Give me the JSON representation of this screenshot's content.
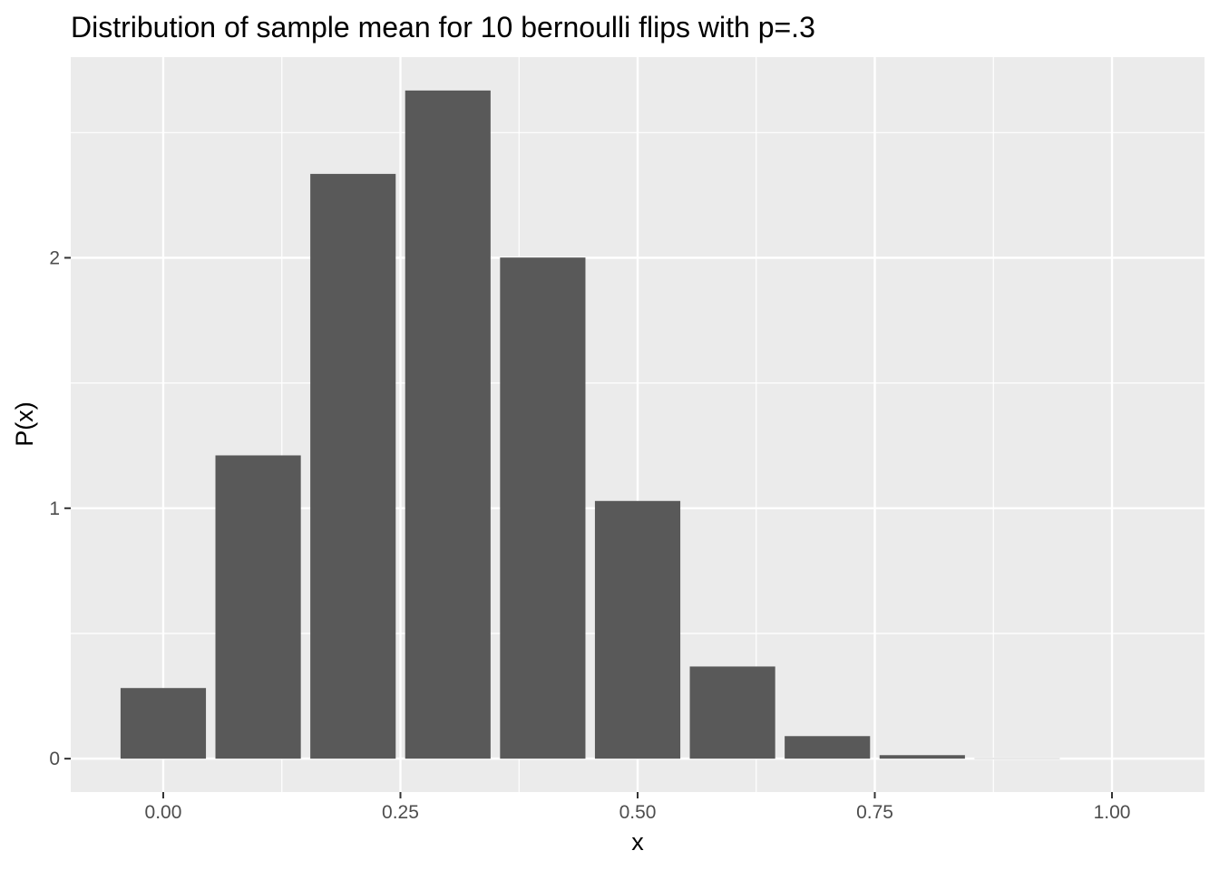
{
  "chart_data": {
    "type": "bar",
    "title": "Distribution of sample mean for 10 bernoulli flips with p=.3",
    "xlabel": "x",
    "ylabel": "P(x)",
    "x": [
      0.0,
      0.1,
      0.2,
      0.3,
      0.4,
      0.5,
      0.6,
      0.7,
      0.8,
      0.9,
      1.0
    ],
    "values": [
      0.282,
      1.211,
      2.335,
      2.668,
      2.001,
      1.029,
      0.368,
      0.09,
      0.014,
      0.001,
      0.0
    ],
    "bar_width": 0.09,
    "xlim": [
      -0.0975,
      1.0975
    ],
    "ylim": [
      -0.1334,
      2.8014
    ],
    "x_ticks": [
      0.0,
      0.25,
      0.5,
      0.75,
      1.0
    ],
    "x_tick_labels": [
      "0.00",
      "0.25",
      "0.50",
      "0.75",
      "1.00"
    ],
    "y_ticks": [
      0,
      1,
      2
    ],
    "y_tick_labels": [
      "0",
      "1",
      "2"
    ],
    "x_minor_ticks": [
      0.125,
      0.375,
      0.625,
      0.875
    ],
    "y_minor_ticks": [
      0.5,
      1.5,
      2.5
    ],
    "grid": true,
    "colors": {
      "panel": "#ebebeb",
      "grid": "#ffffff",
      "bar": "#595959",
      "tick": "#333333"
    }
  }
}
